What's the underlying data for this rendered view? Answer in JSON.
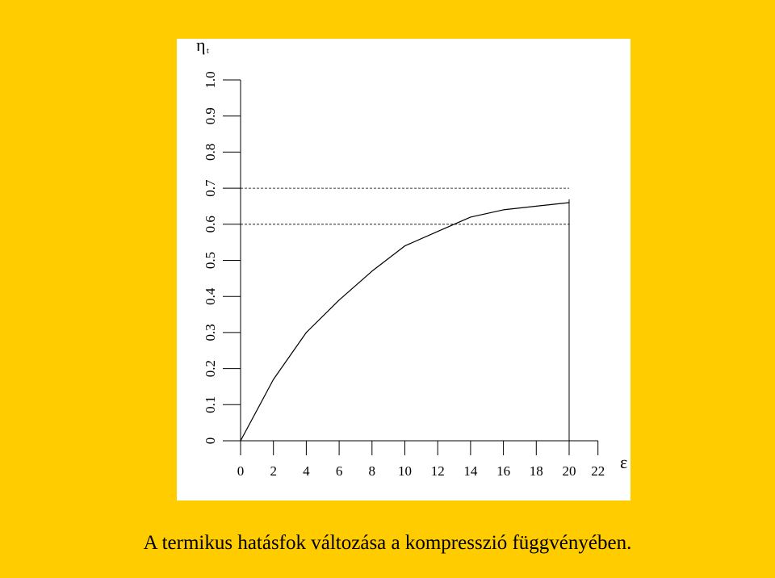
{
  "chart_data": {
    "type": "line",
    "title": "A termikus hatásfok változása a kompresszió függvényében.",
    "y_label": "η",
    "y_label_sub": "t",
    "x_label": "ε",
    "x": [
      0,
      2,
      4,
      6,
      8,
      10,
      12,
      14,
      16,
      18,
      20
    ],
    "series": [
      {
        "color": "#000000",
        "values": [
          0,
          0.17,
          0.3,
          0.39,
          0.47,
          0.54,
          0.58,
          0.62,
          0.64,
          0.65,
          0.66
        ]
      }
    ],
    "xlim": [
      0,
      22
    ],
    "xticks": [
      0,
      2,
      4,
      6,
      8,
      10,
      12,
      14,
      16,
      18,
      20,
      22
    ],
    "ylim": [
      0,
      1
    ],
    "yticks": [
      0,
      0.1,
      0.2,
      0.3,
      0.4,
      0.5,
      0.6,
      0.7,
      0.8,
      0.9,
      {
        "value": 1,
        "label": "1.0"
      }
    ],
    "hlines": [
      0.6,
      0.7
    ],
    "vline": 20
  }
}
